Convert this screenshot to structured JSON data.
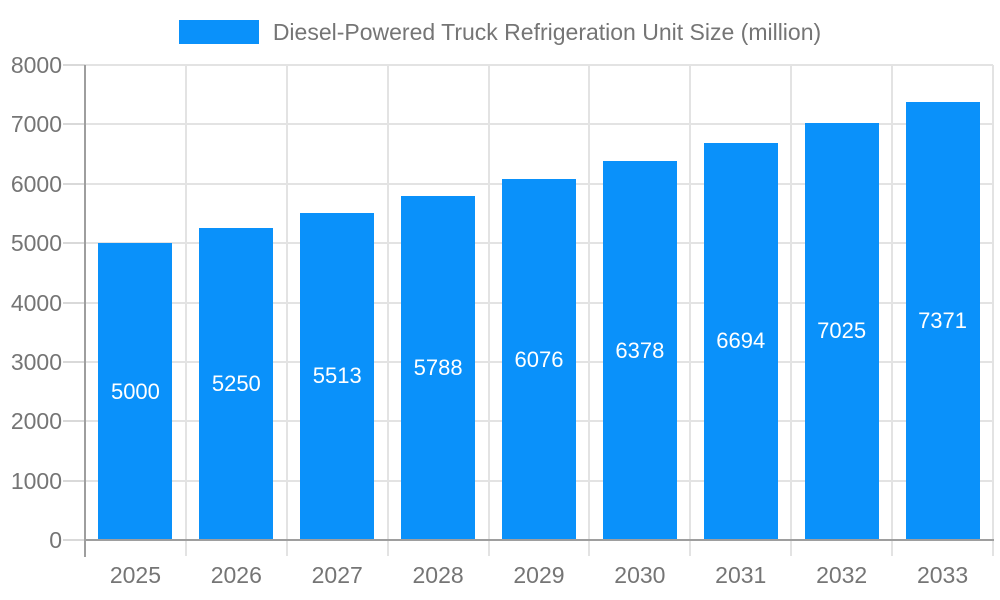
{
  "chart_data": {
    "type": "bar",
    "title": "Diesel-Powered Truck Refrigeration Unit Size (million)",
    "categories": [
      "2025",
      "2026",
      "2027",
      "2028",
      "2029",
      "2030",
      "2031",
      "2032",
      "2033"
    ],
    "series": [
      {
        "name": "Diesel-Powered Truck Refrigeration Unit Size (million)",
        "values": [
          5000,
          5250,
          5513,
          5788,
          6076,
          6378,
          6694,
          7025,
          7371
        ]
      }
    ],
    "xlabel": "",
    "ylabel": "",
    "ylim": [
      0,
      8000
    ],
    "yticks": [
      0,
      1000,
      2000,
      3000,
      4000,
      5000,
      6000,
      7000,
      8000
    ],
    "grid": true,
    "legend_position": "top",
    "bar_value_labels": "inside-center",
    "colors": {
      "bar": "#0A91FA",
      "bar_value_label": "#FFFFFF",
      "axis_text": "#757575",
      "grid_line": "#E3E3E3",
      "axis_line": "#9E9E9E",
      "tick": "#D9D9D9",
      "background": "#FFFFFF"
    }
  }
}
